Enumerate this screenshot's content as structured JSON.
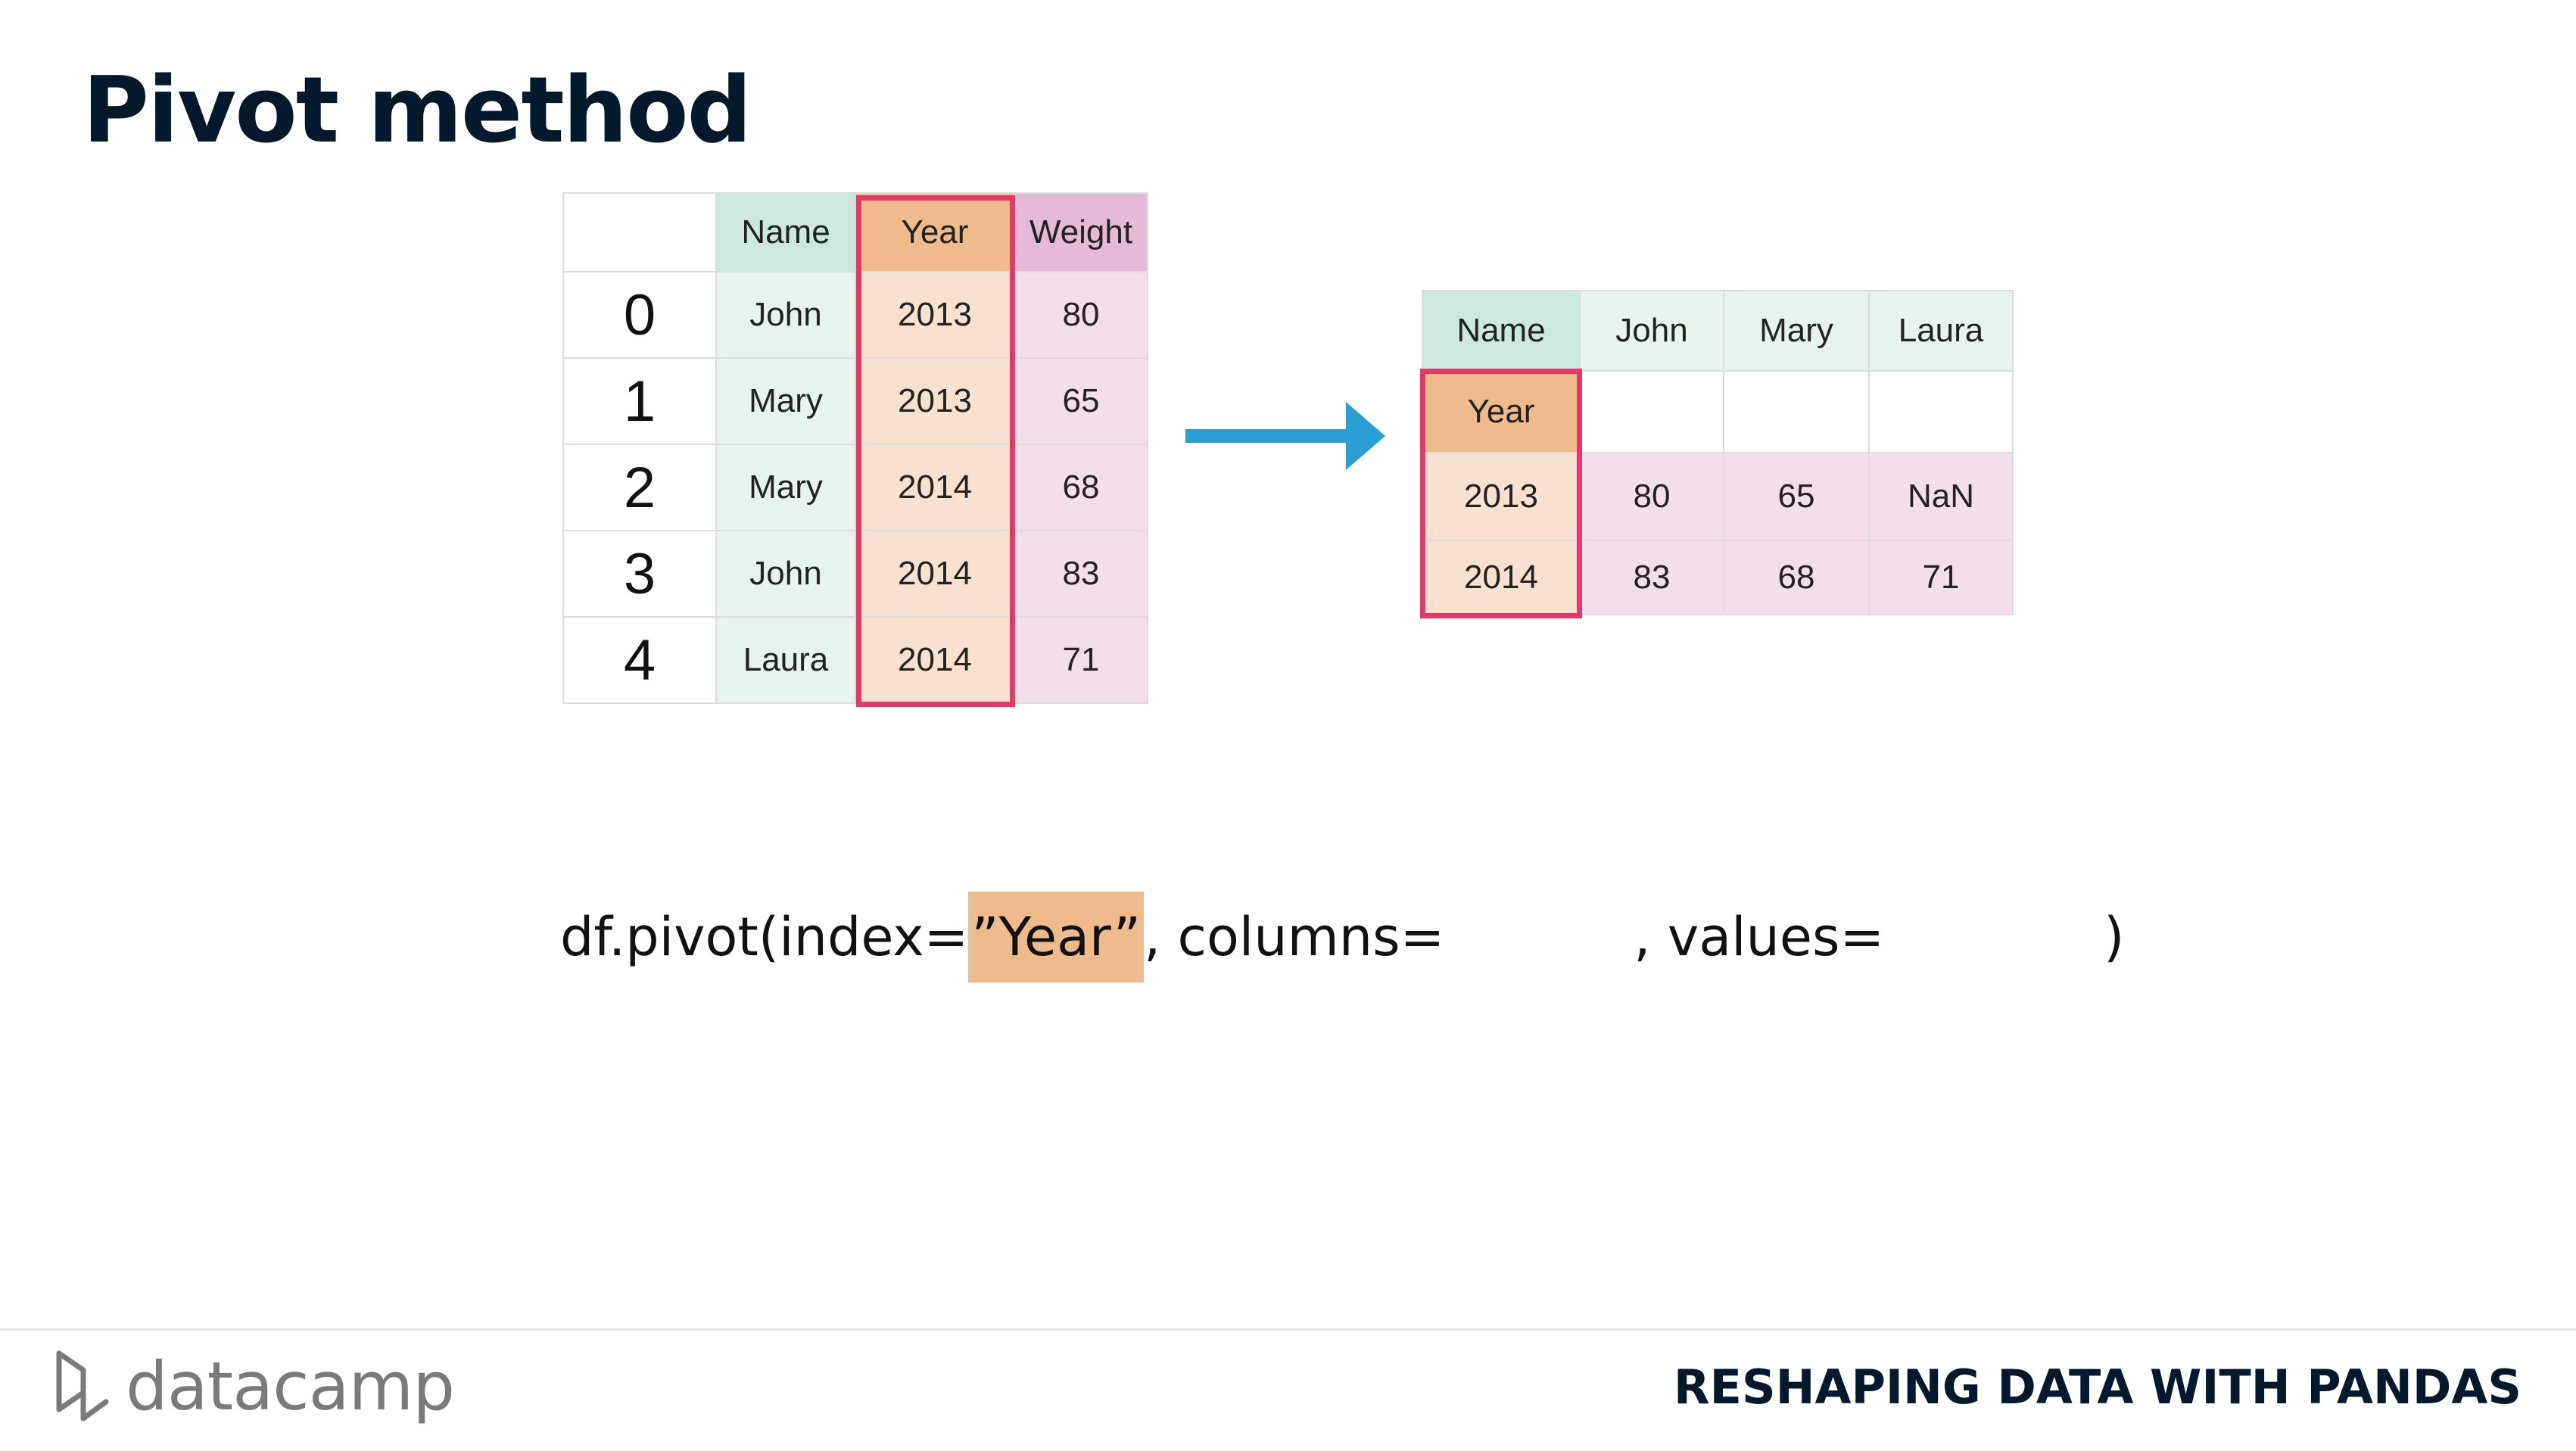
{
  "slide": {
    "title": "Pivot method"
  },
  "source_table": {
    "headers": [
      "Name",
      "Year",
      "Weight"
    ],
    "rows": [
      {
        "index": "0",
        "name": "John",
        "year": "2013",
        "weight": "80"
      },
      {
        "index": "1",
        "name": "Mary",
        "year": "2013",
        "weight": "65"
      },
      {
        "index": "2",
        "name": "Mary",
        "year": "2014",
        "weight": "68"
      },
      {
        "index": "3",
        "name": "John",
        "year": "2014",
        "weight": "83"
      },
      {
        "index": "4",
        "name": "Laura",
        "year": "2014",
        "weight": "71"
      }
    ]
  },
  "result_table": {
    "columns_label": "Name",
    "columns": [
      "John",
      "Mary",
      "Laura"
    ],
    "index_label": "Year",
    "rows": [
      {
        "index": "2013",
        "values": [
          "80",
          "65",
          "NaN"
        ]
      },
      {
        "index": "2014",
        "values": [
          "83",
          "68",
          "71"
        ]
      }
    ]
  },
  "code": {
    "prefix": "df.pivot(index=",
    "index_arg": "”Year”",
    "columns_part": ",  columns=",
    "values_part": ", values=",
    "suffix": ")"
  },
  "colors": {
    "highlight_border": "#e0396a",
    "year_header": "#efbb8d",
    "arrow": "#2a9fd6",
    "title": "#05192d"
  },
  "footer": {
    "logo_text": "datacamp",
    "course_title": "RESHAPING DATA WITH PANDAS"
  }
}
